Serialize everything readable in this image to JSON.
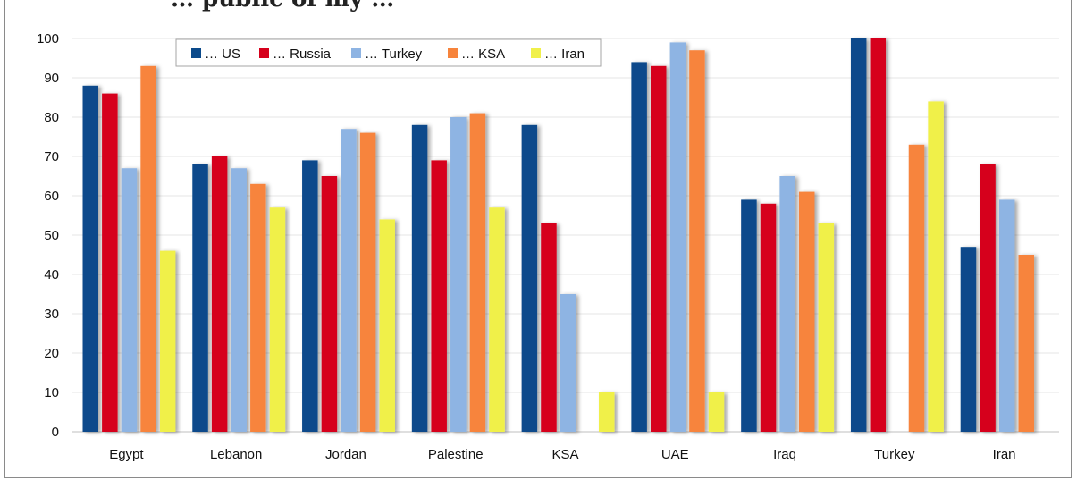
{
  "chart_data": {
    "type": "bar",
    "title": "… public of my …",
    "xlabel": "",
    "ylabel": "",
    "ylim": [
      0,
      100
    ],
    "y_ticks": [
      0,
      10,
      20,
      30,
      40,
      50,
      60,
      70,
      80,
      90,
      100
    ],
    "grid": true,
    "legend_position": "top-left",
    "categories": [
      "Egypt",
      "Lebanon",
      "Jordan",
      "Palestine",
      "KSA",
      "UAE",
      "Iraq",
      "Turkey",
      "Iran"
    ],
    "series": [
      {
        "name": "… US",
        "color": "#0b4a8b",
        "values": [
          88,
          68,
          69,
          78,
          78,
          94,
          59,
          100,
          47
        ]
      },
      {
        "name": "… Russia",
        "color": "#d6001c",
        "values": [
          86,
          70,
          65,
          69,
          53,
          93,
          58,
          100,
          68
        ]
      },
      {
        "name": "… Turkey",
        "color": "#8eb4e3",
        "values": [
          67,
          67,
          77,
          80,
          35,
          99,
          65,
          null,
          59
        ]
      },
      {
        "name": "… KSA",
        "color": "#f7843c",
        "values": [
          93,
          63,
          76,
          81,
          null,
          97,
          61,
          73,
          45
        ]
      },
      {
        "name": "… Iran",
        "color": "#f0f04a",
        "values": [
          46,
          57,
          54,
          57,
          10,
          10,
          53,
          84,
          null
        ]
      }
    ]
  }
}
